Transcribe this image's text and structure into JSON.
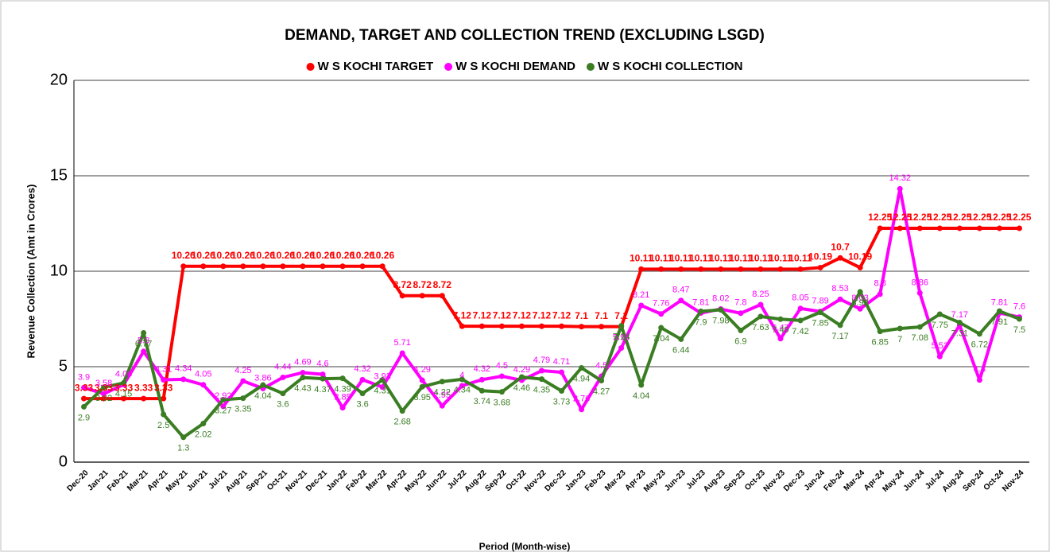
{
  "chart_data": {
    "type": "line",
    "title": "DEMAND, TARGET AND COLLECTION TREND (EXCLUDING LSGD)",
    "xlabel": "Period (Month-wise)",
    "ylabel": "Revenue Collection (Amt in Crores)",
    "categories": [
      "Dec-20",
      "Jan-21",
      "Feb-21",
      "Mar-21",
      "Apr-21",
      "May-21",
      "Jun-21",
      "Jul-21",
      "Aug-21",
      "Sep-21",
      "Oct-21",
      "Nov-21",
      "Dec-21",
      "Jan-22",
      "Feb-22",
      "Mar-22",
      "Apr-22",
      "May-22",
      "Jun-22",
      "Jul-22",
      "Aug-22",
      "Sep-22",
      "Oct-22",
      "Nov-22",
      "Dec-22",
      "Jan-23",
      "Feb-23",
      "Mar-23",
      "Apr-23",
      "May-23",
      "Jun-23",
      "Jul-23",
      "Aug-23",
      "Sep-23",
      "Oct-23",
      "Nov-23",
      "Dec-23",
      "Jan-24",
      "Feb-24",
      "Mar-24",
      "Apr-24",
      "May-24",
      "Jun-24",
      "Jul-24",
      "Aug-24",
      "Sep-24",
      "Oct-24",
      "Nov-24"
    ],
    "series": [
      {
        "name": "W S KOCHI TARGET",
        "color": "#ff0000",
        "label_pos": "above",
        "bold": true,
        "values": [
          3.33,
          3.33,
          3.33,
          3.33,
          3.33,
          10.26,
          10.26,
          10.26,
          10.26,
          10.26,
          10.26,
          10.26,
          10.26,
          10.26,
          10.26,
          10.26,
          8.72,
          8.72,
          8.72,
          7.12,
          7.12,
          7.12,
          7.12,
          7.12,
          7.12,
          7.1,
          7.1,
          7.1,
          10.11,
          10.11,
          10.11,
          10.11,
          10.11,
          10.11,
          10.11,
          10.11,
          10.11,
          10.19,
          10.7,
          10.19,
          12.25,
          12.25,
          12.25,
          12.25,
          12.25,
          12.25,
          12.25,
          12.25
        ]
      },
      {
        "name": "W S KOCHI DEMAND",
        "color": "#ff00ff",
        "label_pos": "above",
        "bold": false,
        "values": [
          3.9,
          3.58,
          4.06,
          5.8,
          4.31,
          4.34,
          4.05,
          2.92,
          4.25,
          3.86,
          4.44,
          4.69,
          4.6,
          2.85,
          4.32,
          3.93,
          5.71,
          4.29,
          2.95,
          4,
          4.32,
          4.5,
          4.29,
          4.79,
          4.71,
          2.76,
          4.5,
          5.98,
          8.21,
          7.76,
          8.47,
          7.81,
          8.02,
          7.8,
          8.25,
          6.47,
          8.05,
          7.89,
          8.53,
          8.03,
          8.8,
          14.32,
          8.86,
          5.53,
          7.17,
          4.3,
          7.81,
          7.6
        ]
      },
      {
        "name": "W S KOCHI COLLECTION",
        "color": "#3a7d22",
        "label_pos": "below",
        "bold": false,
        "values": [
          2.9,
          3.92,
          4.15,
          6.77,
          2.5,
          1.3,
          2.02,
          3.27,
          3.35,
          4.04,
          3.6,
          4.43,
          4.37,
          4.39,
          3.6,
          4.31,
          2.68,
          3.95,
          4.22,
          4.34,
          3.74,
          3.68,
          4.46,
          4.35,
          3.73,
          4.94,
          4.27,
          7.14,
          4.04,
          7.04,
          6.44,
          7.9,
          7.98,
          6.9,
          7.63,
          7.49,
          7.42,
          7.85,
          7.17,
          8.92,
          6.85,
          7,
          7.08,
          7.75,
          7.31,
          6.72,
          7.91,
          7.5
        ]
      }
    ],
    "ylim": [
      0,
      20
    ],
    "yticks": [
      0,
      5,
      10,
      15,
      20
    ],
    "grid": true,
    "legend": "top"
  }
}
